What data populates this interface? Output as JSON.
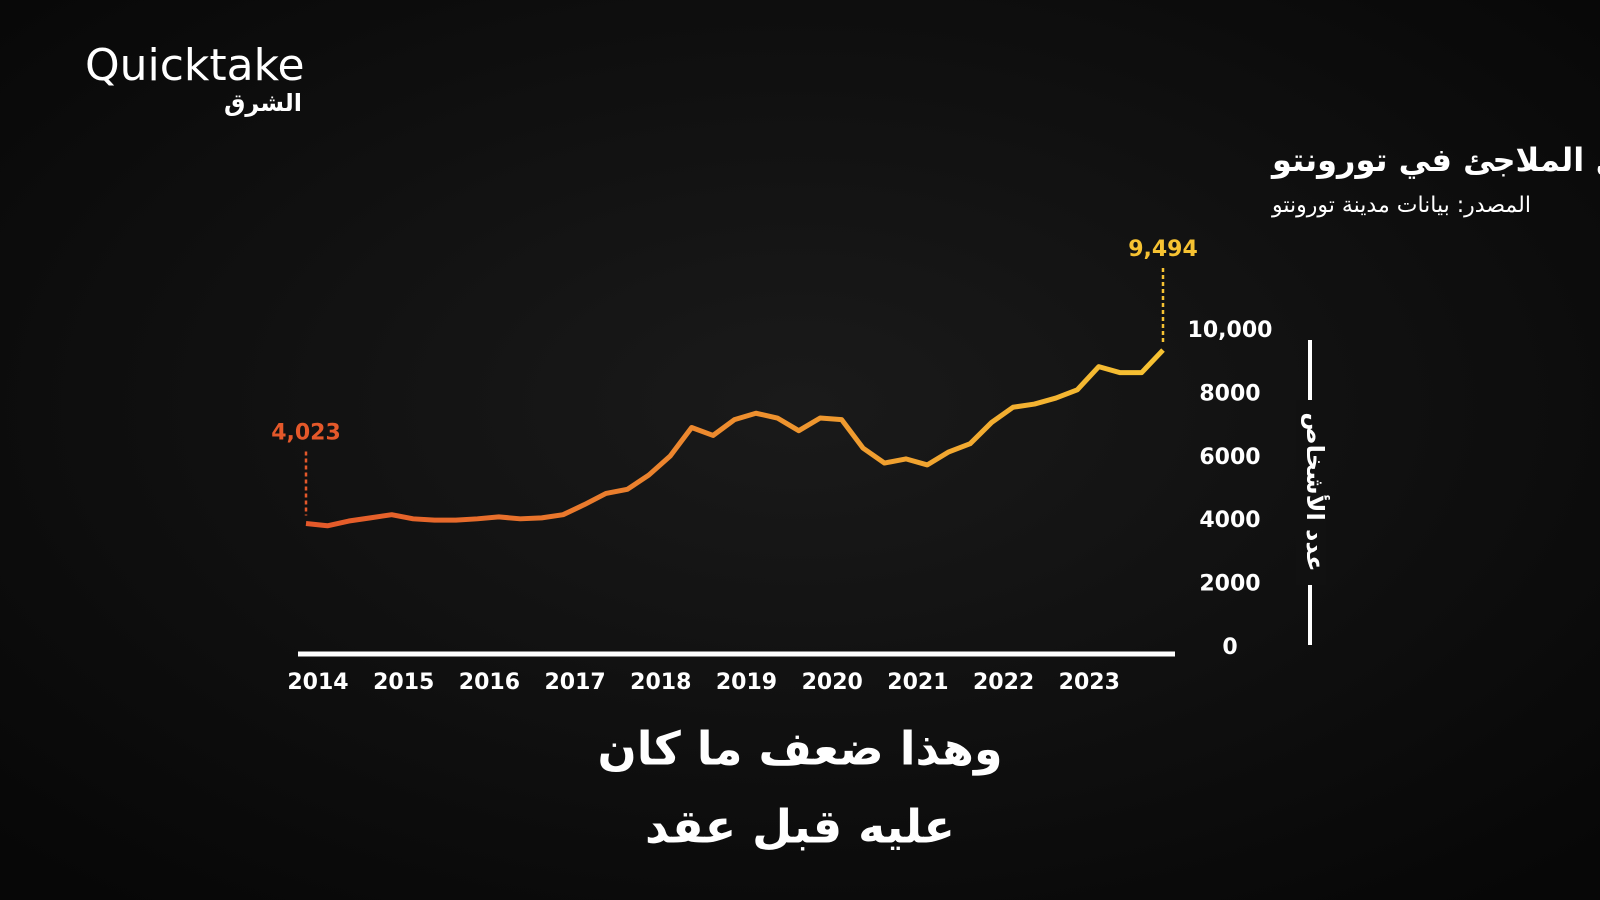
{
  "brand": {
    "name": "Quicktake",
    "sub": "الشرق"
  },
  "chart_data": {
    "type": "line",
    "title": "معدل إشغال الملاجئ في تورونتو",
    "subtitle": "المصدر: بيانات مدينة تورونتو",
    "y_label": "عدد الأشخاص",
    "categories": [
      "2014",
      null,
      null,
      null,
      "2015",
      null,
      null,
      null,
      "2016",
      null,
      null,
      null,
      "2017",
      null,
      null,
      null,
      "2018",
      null,
      null,
      null,
      "2019",
      null,
      null,
      null,
      "2020",
      null,
      null,
      null,
      "2021",
      null,
      null,
      null,
      "2022",
      null,
      null,
      null,
      "2023",
      null,
      null,
      null,
      null
    ],
    "series": [
      {
        "colors": [
          "#e4582a",
          "#f6c232"
        ],
        "values": [
          4023,
          3950,
          4100,
          4200,
          4300,
          4170,
          4130,
          4130,
          4170,
          4230,
          4170,
          4200,
          4300,
          4620,
          4970,
          5100,
          5550,
          6150,
          7050,
          6800,
          7300,
          7500,
          7350,
          6950,
          7350,
          7300,
          6400,
          5930,
          6060,
          5870,
          6280,
          6540,
          7210,
          7690,
          7790,
          7980,
          8240,
          8970,
          8780,
          8780,
          9494
        ],
        "value_labels": [
          "4,023",
          null,
          null,
          null,
          null,
          null,
          null,
          null,
          null,
          null,
          null,
          null,
          null,
          null,
          null,
          null,
          null,
          null,
          null,
          null,
          null,
          null,
          null,
          null,
          null,
          null,
          null,
          null,
          null,
          null,
          null,
          null,
          null,
          null,
          null,
          null,
          null,
          null,
          null,
          null,
          "9,494"
        ]
      }
    ],
    "ylim": [
      0,
      10000
    ],
    "yticks": [
      0,
      2000,
      4000,
      6000,
      8000,
      {
        "value": 10000,
        "label": "10,000"
      }
    ],
    "y_axis_side": "right"
  },
  "caption": [
    "وهذا ضعف ما كان",
    "عليه قبل عقد"
  ]
}
